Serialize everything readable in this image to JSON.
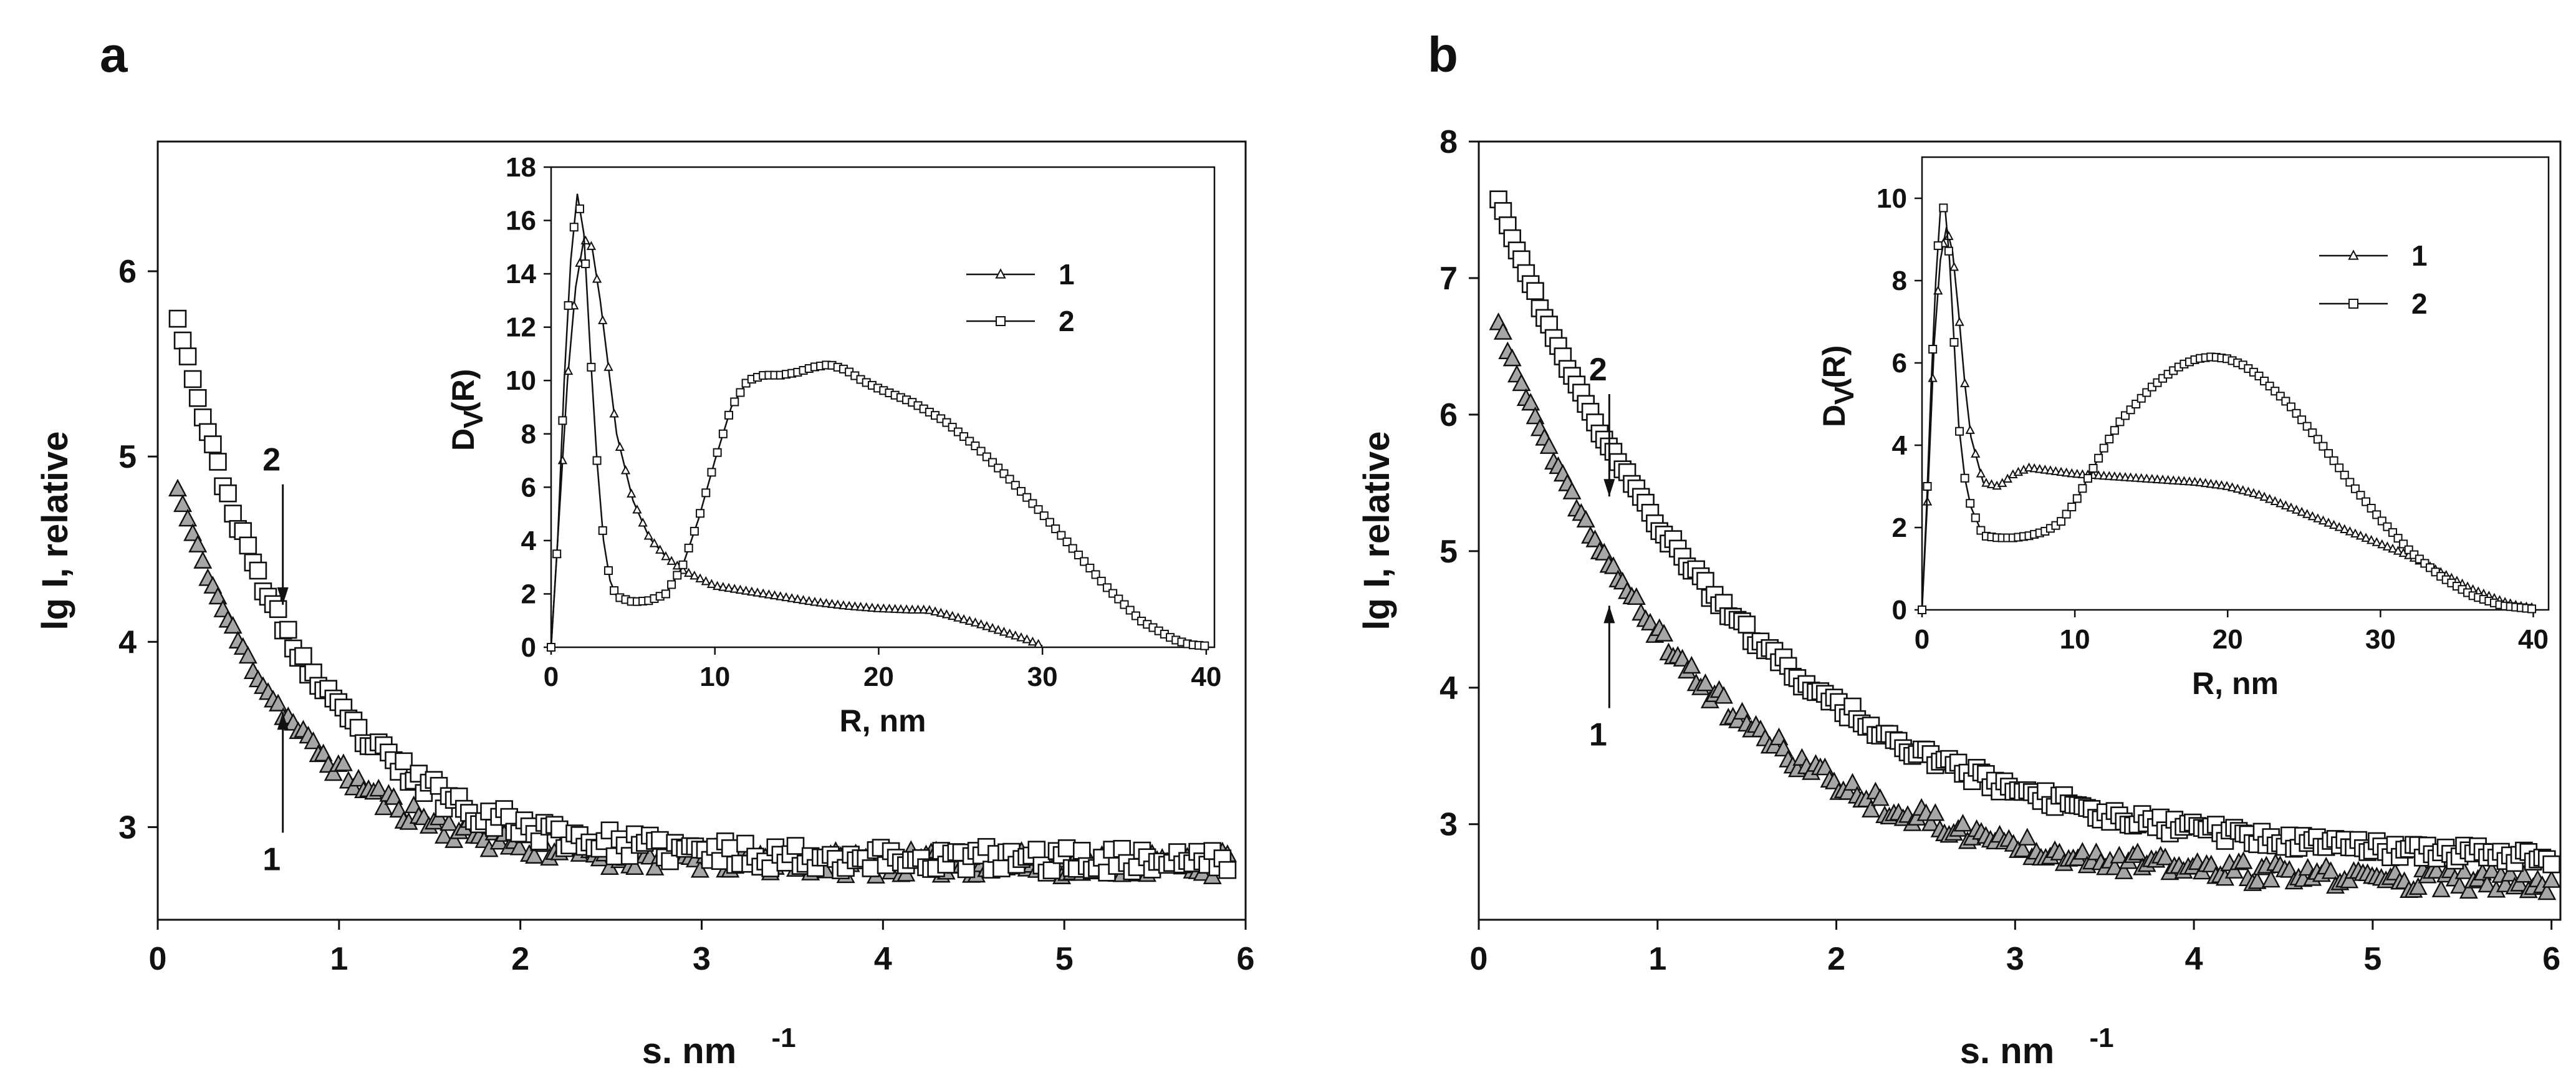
{
  "chart_data": [
    {
      "panel": "a",
      "type": "scatter",
      "xlabel": "s. nm",
      "xlabel_sup": "-1",
      "ylabel": "lg I, relative",
      "xlim": [
        0,
        6
      ],
      "ylim": [
        2.5,
        6.7
      ],
      "xticks": [
        "0",
        "1",
        "2",
        "3",
        "4",
        "5",
        "6"
      ],
      "yticks": [
        "3",
        "4",
        "5",
        "6"
      ],
      "series": [
        {
          "name": "1",
          "marker": "triangle",
          "fill": "#a6a6a6",
          "model": {
            "floor": 2.8,
            "amplitude": 2.4,
            "decay": 1.55,
            "s_start": 0.11,
            "s_end": 5.9,
            "n": 210,
            "noise": 0.07
          }
        },
        {
          "name": "2",
          "marker": "square",
          "fill": "#ffffff",
          "model": {
            "floor": 2.82,
            "amplitude": 3.45,
            "decay": 1.45,
            "s_start": 0.11,
            "s_end": 5.9,
            "n": 210,
            "noise": 0.07
          }
        }
      ],
      "callouts": [
        {
          "label": "2",
          "x": 0.69,
          "y_from": 4.85,
          "y_to": 4.2
        },
        {
          "label": "1",
          "x": 0.69,
          "y_from": 2.97,
          "y_to": 3.62
        }
      ],
      "inset": {
        "type": "line",
        "xlabel": "R, nm",
        "ylabel": "D",
        "ylabel_sub": "V",
        "ylabel_suffix": "(R)",
        "xlim": [
          0,
          40.5
        ],
        "ylim": [
          0,
          18
        ],
        "xticks": [
          "0",
          "10",
          "20",
          "30",
          "40"
        ],
        "yticks": [
          "0",
          "2",
          "4",
          "6",
          "8",
          "10",
          "12",
          "14",
          "16",
          "18"
        ],
        "series": [
          {
            "name": "1",
            "marker": "triangle",
            "x": [
              0,
              0.5,
              1,
              1.5,
              2,
              2.5,
              3,
              3.5,
              4,
              5,
              6,
              7,
              8,
              9,
              10,
              12,
              14,
              16,
              18,
              20,
              22,
              23,
              24,
              26,
              28,
              29,
              30
            ],
            "y": [
              0,
              5,
              10,
              13.5,
              15.3,
              15,
              13,
              10.5,
              8,
              5.5,
              4.1,
              3.4,
              2.9,
              2.6,
              2.3,
              2.1,
              1.9,
              1.7,
              1.55,
              1.45,
              1.4,
              1.4,
              1.25,
              0.9,
              0.5,
              0.3,
              0.05
            ]
          },
          {
            "name": "2",
            "marker": "square",
            "x": [
              0,
              0.4,
              0.8,
              1.2,
              1.6,
              2,
              2.4,
              2.8,
              3.2,
              3.6,
              4,
              5,
              6,
              7,
              8,
              9,
              10,
              11,
              12,
              13,
              14,
              15,
              16,
              17,
              18,
              19,
              20,
              22,
              24,
              26,
              28,
              30,
              32,
              34,
              36,
              38,
              39,
              40
            ],
            "y": [
              0,
              4,
              10,
              14.5,
              17,
              15.5,
              11,
              7,
              4,
              2.5,
              1.9,
              1.7,
              1.75,
              2,
              3,
              4.8,
              7,
              9,
              10,
              10.2,
              10.2,
              10.3,
              10.5,
              10.6,
              10.4,
              10,
              9.7,
              9.2,
              8.5,
              7.5,
              6.3,
              5,
              3.6,
              2.2,
              1,
              0.3,
              0.1,
              0.05
            ]
          }
        ]
      }
    },
    {
      "panel": "b",
      "type": "scatter",
      "xlabel": "s. nm",
      "xlabel_sup": "-1",
      "ylabel": "lg I, relative",
      "xlim": [
        0,
        6.05
      ],
      "ylim": [
        2.3,
        8
      ],
      "xticks": [
        "0",
        "1",
        "2",
        "3",
        "4",
        "5",
        "6"
      ],
      "yticks": [
        "3",
        "4",
        "5",
        "6",
        "7",
        "8"
      ],
      "series": [
        {
          "name": "1",
          "marker": "triangle",
          "fill": "#a6a6a6",
          "model": {
            "floor": 2.55,
            "amplitude": 4.55,
            "decay": 0.9,
            "s_start": 0.11,
            "s_end": 6.0,
            "n": 230,
            "noise": 0.08
          }
        },
        {
          "name": "2",
          "marker": "square",
          "fill": "#ffffff",
          "model": {
            "floor": 2.7,
            "amplitude": 5.3,
            "decay": 0.75,
            "s_start": 0.11,
            "s_end": 6.0,
            "n": 230,
            "noise": 0.06
          }
        }
      ],
      "callouts": [
        {
          "label": "2",
          "x": 0.73,
          "y_from": 6.15,
          "y_to": 5.4
        },
        {
          "label": "1",
          "x": 0.73,
          "y_from": 3.85,
          "y_to": 4.6
        }
      ],
      "inset": {
        "type": "line",
        "xlabel": "R, nm",
        "ylabel": "D",
        "ylabel_sub": "V",
        "ylabel_suffix": "(R)",
        "xlim": [
          0,
          41
        ],
        "ylim": [
          0,
          11
        ],
        "xticks": [
          "0",
          "10",
          "20",
          "30",
          "40"
        ],
        "yticks": [
          "0",
          "2",
          "4",
          "6",
          "8",
          "10"
        ],
        "series": [
          {
            "name": "1",
            "marker": "triangle",
            "x": [
              0,
              0.4,
              0.8,
              1.2,
              1.6,
              2,
              2.4,
              2.8,
              3.2,
              4,
              5,
              6,
              7,
              8,
              10,
              12,
              14,
              16,
              18,
              20,
              22,
              24,
              26,
              28,
              30,
              32,
              34,
              36,
              38,
              39,
              40
            ],
            "y": [
              0,
              3,
              6.5,
              8.5,
              9.3,
              8.7,
              7.2,
              5.5,
              4.2,
              3.1,
              3,
              3.3,
              3.45,
              3.4,
              3.3,
              3.25,
              3.2,
              3.15,
              3.1,
              3,
              2.8,
              2.5,
              2.2,
              1.9,
              1.6,
              1.3,
              0.9,
              0.5,
              0.2,
              0.1,
              0.05
            ]
          },
          {
            "name": "2",
            "marker": "square",
            "x": [
              0,
              0.3,
              0.6,
              0.9,
              1.2,
              1.5,
              1.8,
              2.1,
              2.4,
              2.8,
              3.2,
              4,
              5,
              6,
              7,
              8,
              9,
              10,
              11,
              12,
              13,
              14,
              15,
              16,
              17,
              18,
              19,
              20,
              21,
              22,
              24,
              26,
              28,
              30,
              32,
              34,
              36,
              38,
              40
            ],
            "y": [
              0,
              2.5,
              5.5,
              8,
              9.7,
              9.8,
              8.5,
              6.5,
              4.5,
              3.2,
              2.5,
              1.8,
              1.75,
              1.75,
              1.8,
              1.9,
              2.1,
              2.6,
              3.3,
              4,
              4.6,
              5,
              5.4,
              5.7,
              5.95,
              6.1,
              6.15,
              6.1,
              5.95,
              5.7,
              5,
              4.1,
              3.1,
              2.2,
              1.4,
              0.8,
              0.35,
              0.1,
              0.02
            ]
          }
        ]
      }
    }
  ]
}
